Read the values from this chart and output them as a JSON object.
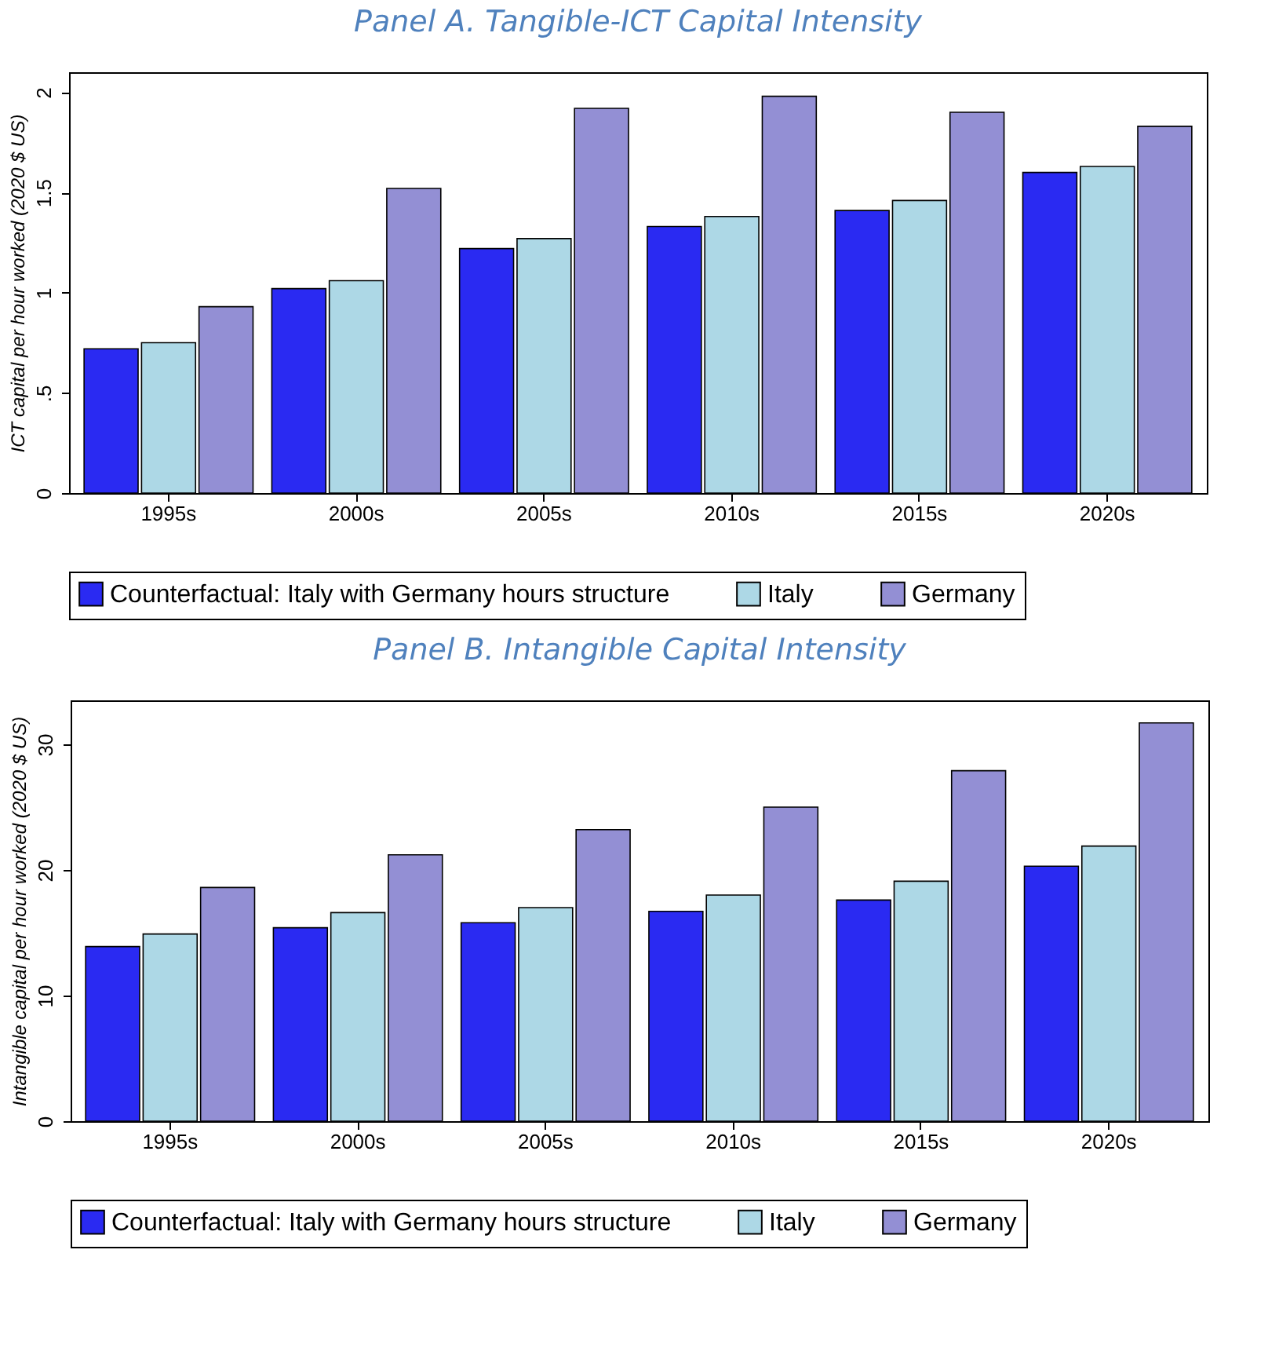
{
  "chart_data": [
    {
      "type": "bar",
      "title": "Panel A. Tangible-ICT Capital Intensity",
      "ylabel": "ICT capital per hour worked (2020 $ US)",
      "categories": [
        "1995s",
        "2000s",
        "2005s",
        "2010s",
        "2015s",
        "2020s"
      ],
      "series": [
        {
          "name": "Counterfactual: Italy with Germany hours structure",
          "color": "#2a2af2",
          "values": [
            0.72,
            1.02,
            1.22,
            1.33,
            1.41,
            1.6
          ]
        },
        {
          "name": "Italy",
          "color": "#add8e6",
          "values": [
            0.75,
            1.06,
            1.27,
            1.38,
            1.46,
            1.63
          ]
        },
        {
          "name": "Germany",
          "color": "#938fd4",
          "values": [
            0.93,
            1.52,
            1.92,
            1.98,
            1.9,
            1.83
          ]
        }
      ],
      "ylim": [
        0,
        2.1
      ],
      "yticks": [
        0,
        {
          "value": 0.5,
          "label": ".5"
        },
        1,
        1.5,
        2
      ],
      "grid": false,
      "legend": "bottom"
    },
    {
      "type": "bar",
      "title": "Panel B. Intangible Capital Intensity",
      "ylabel": "Intangible capital per hour worked (2020 $ US)",
      "categories": [
        "1995s",
        "2000s",
        "2005s",
        "2010s",
        "2015s",
        "2020s"
      ],
      "series": [
        {
          "name": "Counterfactual: Italy with Germany hours structure",
          "color": "#2a2af2",
          "values": [
            13.9,
            15.4,
            15.8,
            16.7,
            17.6,
            20.3
          ]
        },
        {
          "name": "Italy",
          "color": "#add8e6",
          "values": [
            14.9,
            16.6,
            17.0,
            18.0,
            19.1,
            21.9
          ]
        },
        {
          "name": "Germany",
          "color": "#938fd4",
          "values": [
            18.6,
            21.2,
            23.2,
            25.0,
            27.9,
            31.7
          ]
        }
      ],
      "ylim": [
        0,
        33.5
      ],
      "yticks": [
        0,
        10,
        20,
        30
      ],
      "grid": false,
      "legend": "bottom"
    }
  ]
}
